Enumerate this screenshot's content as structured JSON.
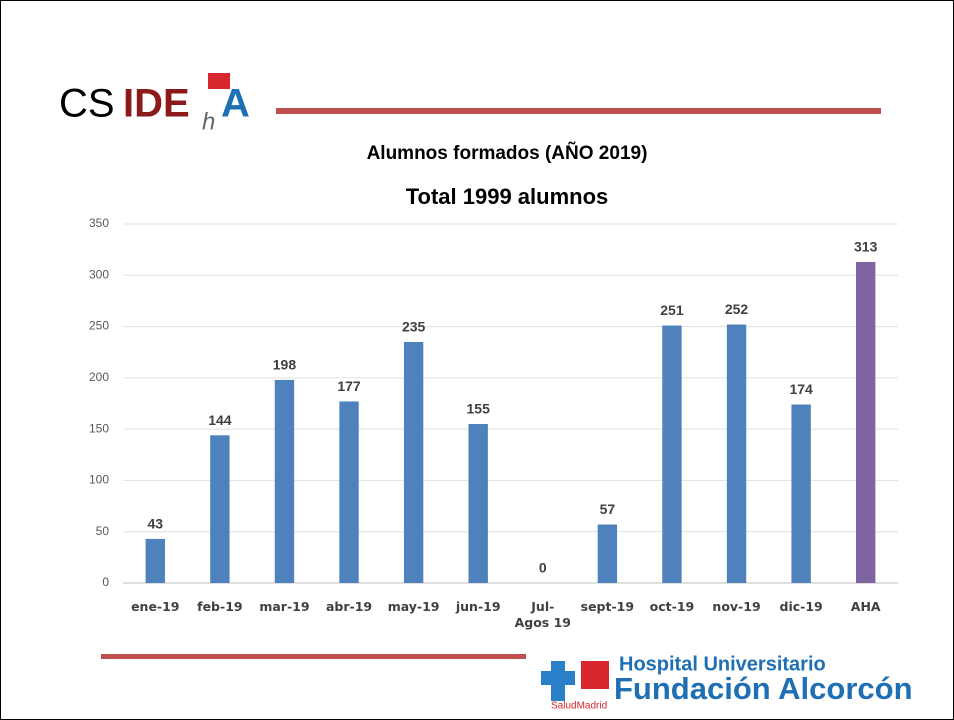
{
  "logo": {
    "cs": "CS",
    "ide": "IDE",
    "h": "h",
    "a": "A"
  },
  "footer": {
    "line1": "Hospital Universitario",
    "line2": "Fundación Alcorcón",
    "brand": "SaludMadrid"
  },
  "chart_data": {
    "type": "bar",
    "title": "Alumnos formados (AÑO 2019)",
    "subtitle": "Total 1999 alumnos",
    "categories": [
      "ene-19",
      "feb-19",
      "mar-19",
      "abr-19",
      "may-19",
      "jun-19",
      "Jul-Agos 19",
      "sept-19",
      "oct-19",
      "nov-19",
      "dic-19",
      "AHA"
    ],
    "values": [
      43,
      144,
      198,
      177,
      235,
      155,
      0,
      57,
      251,
      252,
      174,
      313
    ],
    "colors": [
      "#4f81bd",
      "#4f81bd",
      "#4f81bd",
      "#4f81bd",
      "#4f81bd",
      "#4f81bd",
      "#4f81bd",
      "#4f81bd",
      "#4f81bd",
      "#4f81bd",
      "#4f81bd",
      "#8064a2"
    ],
    "ylim": [
      0,
      350
    ],
    "yticks": [
      0,
      50,
      100,
      150,
      200,
      250,
      300,
      350
    ],
    "grid": true
  }
}
